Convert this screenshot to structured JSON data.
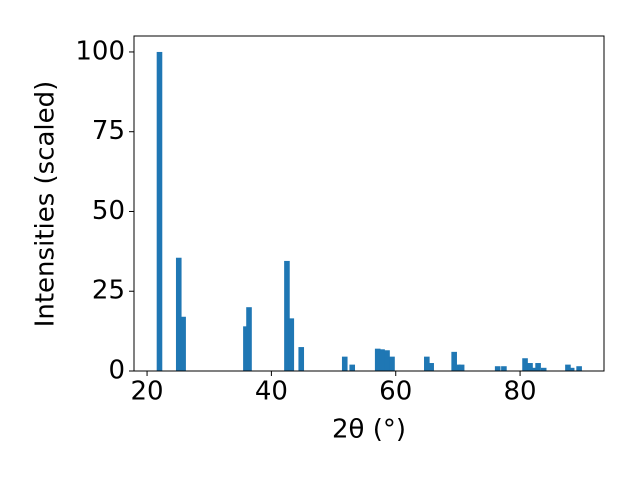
{
  "chart_data": {
    "type": "bar",
    "xlabel": "2θ (°)",
    "ylabel": "Intensities (scaled)",
    "x": [
      22.0,
      25.1,
      25.8,
      35.9,
      36.4,
      42.5,
      43.2,
      44.8,
      51.8,
      53.0,
      57.1,
      57.8,
      58.6,
      59.4,
      65.0,
      65.7,
      69.4,
      70.0,
      70.6,
      76.4,
      77.4,
      80.8,
      81.6,
      82.2,
      82.9,
      83.8,
      87.7,
      88.3,
      89.5
    ],
    "values": [
      100,
      35.5,
      17,
      14,
      20,
      34.5,
      16.5,
      7.5,
      4.5,
      2,
      7,
      6.8,
      6.5,
      4.5,
      4.5,
      2.5,
      6,
      2,
      2,
      1.5,
      1.5,
      4,
      2.5,
      1,
      2.5,
      1,
      2,
      1,
      1.5
    ],
    "color": "#1f77b4",
    "xlim": [
      17.9,
      93.5
    ],
    "xticks": [
      20,
      40,
      60,
      80
    ],
    "ylim": [
      0,
      105
    ],
    "yticks": [
      0,
      25,
      50,
      75,
      100
    ]
  }
}
